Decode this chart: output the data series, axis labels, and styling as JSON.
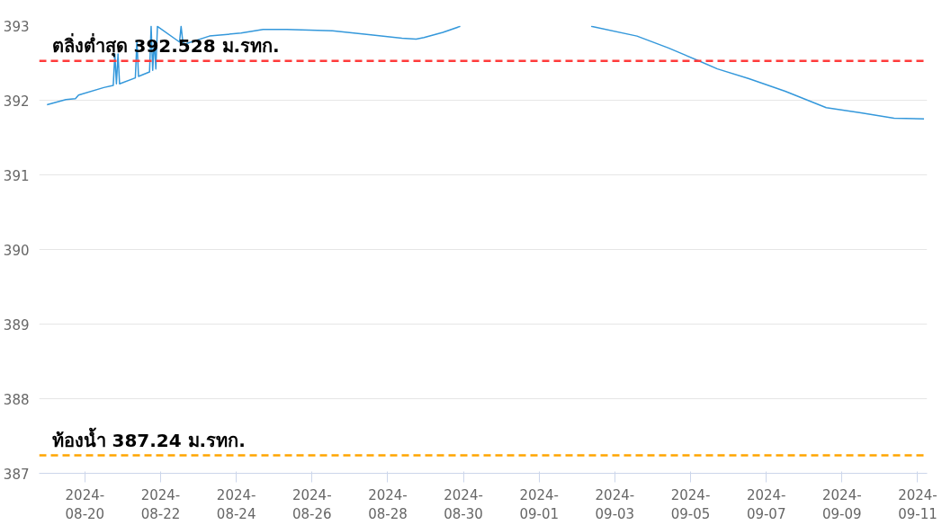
{
  "chart_data": {
    "type": "line",
    "x": [
      "2024-08-19T00:00",
      "2024-08-19T12:00",
      "2024-08-19T18:00",
      "2024-08-19T20:00",
      "2024-08-20T12:00",
      "2024-08-20T18:00",
      "2024-08-20T19:00",
      "2024-08-20T20:00",
      "2024-08-20T21:00",
      "2024-08-20T22:00",
      "2024-08-21T08:00",
      "2024-08-21T09:00",
      "2024-08-21T10:00",
      "2024-08-21T17:00",
      "2024-08-21T18:00",
      "2024-08-21T19:00",
      "2024-08-21T20:00",
      "2024-08-21T21:00",
      "2024-08-21T22:00",
      "2024-08-22T12:00",
      "2024-08-22T13:00",
      "2024-08-22T14:00",
      "2024-08-22T15:00",
      "2024-08-23T07:00",
      "2024-08-24T03:00",
      "2024-08-24T17:00",
      "2024-08-25T08:00",
      "2024-08-26T13:00",
      "2024-08-27T12:00",
      "2024-08-28T09:00",
      "2024-08-28T18:00",
      "2024-08-28T23:00",
      "2024-08-29T11:00",
      "2024-08-29T22:00",
      "2024-08-31T12:00",
      "2024-09-02T09:00",
      "2024-09-03T14:00",
      "2024-09-04T10:00",
      "2024-09-05T05:00",
      "2024-09-05T17:00",
      "2024-09-06T13:00",
      "2024-09-07T12:00",
      "2024-09-08T14:00",
      "2024-09-09T12:00",
      "2024-09-10T09:00",
      "2024-09-11T04:00"
    ],
    "series": [
      {
        "color": "#3498db",
        "values": [
          391.94,
          392.01,
          392.02,
          392.07,
          392.17,
          392.2,
          392.62,
          392.22,
          392.62,
          392.22,
          392.3,
          392.8,
          392.32,
          392.38,
          392.99,
          392.4,
          392.8,
          392.42,
          392.99,
          392.78,
          392.99,
          392.8,
          392.75,
          392.86,
          392.9,
          392.95,
          392.95,
          392.93,
          392.88,
          392.83,
          392.82,
          392.84,
          392.91,
          392.99,
          null,
          392.99,
          392.86,
          392.7,
          392.53,
          392.42,
          392.29,
          392.12,
          391.9,
          391.83,
          391.76,
          391.75
        ]
      }
    ],
    "xlim": [
      "2024-08-18T19:00",
      "2024-09-11T06:00"
    ],
    "xticks": [
      "2024-08-20",
      "2024-08-22",
      "2024-08-24",
      "2024-08-26",
      "2024-08-28",
      "2024-08-30",
      "2024-09-01",
      "2024-09-03",
      "2024-09-05",
      "2024-09-07",
      "2024-09-09",
      "2024-09-11"
    ],
    "ylim": [
      387,
      393
    ],
    "yticks": [
      387,
      388,
      389,
      390,
      391,
      392,
      393
    ],
    "grid": "y",
    "line_style": "solid",
    "marker": "none",
    "ref_lines": [
      {
        "axis": "y",
        "value": 392.528,
        "label": "ตลิ่งต่ำสุด 392.528 ม.รทก.",
        "color": "#ff3b3b",
        "line_style": "dashed"
      },
      {
        "axis": "y",
        "value": 387.24,
        "label": "ท้องน้ำ 387.24 ม.รทก.",
        "color": "#ffa500",
        "line_style": "dashed"
      }
    ]
  }
}
